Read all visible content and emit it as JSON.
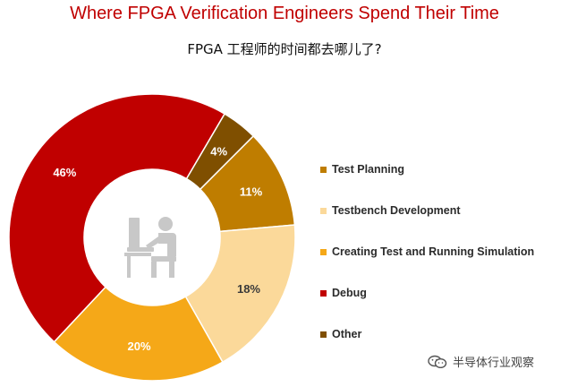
{
  "title": "Where FPGA Verification Engineers Spend Their Time",
  "subtitle": "FPGA 工程师的时间都去哪儿了?",
  "watermark": "半导体行业观察",
  "chart_data": {
    "type": "pie",
    "donut": true,
    "series": [
      {
        "name": "Test Planning",
        "value": 11,
        "label": "11%",
        "color": "#bf7d00",
        "label_color": "#ffffff"
      },
      {
        "name": "Testbench Development",
        "value": 18,
        "label": "18%",
        "color": "#fbd99a",
        "label_color": "#3a3a3a"
      },
      {
        "name": "Creating Test and Running Simulation",
        "value": 20,
        "label": "20%",
        "color": "#f5a818",
        "label_color": "#ffffff"
      },
      {
        "name": "Debug",
        "value": 46,
        "label": "46%",
        "color": "#c00000",
        "label_color": "#ffffff"
      },
      {
        "name": "Other",
        "value": 4,
        "label": "4%",
        "color": "#7f4f00",
        "label_color": "#ffffff"
      }
    ],
    "legend_position": "right",
    "center_icon": "person-at-computer-icon"
  }
}
